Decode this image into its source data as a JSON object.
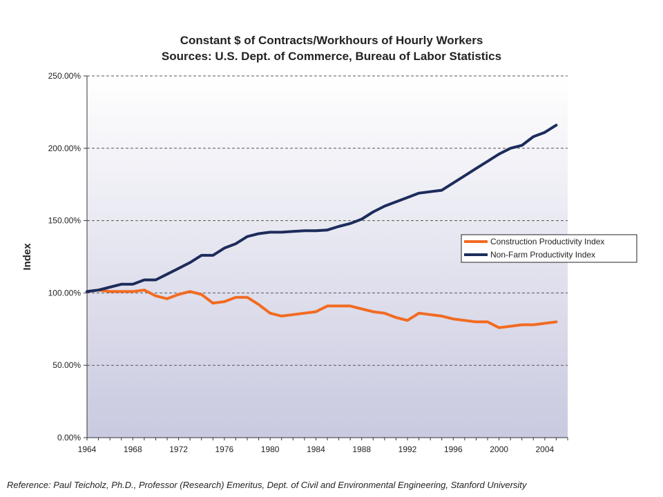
{
  "chart_data": {
    "type": "line",
    "title": "Constant $ of Contracts/Workhours of Hourly Workers",
    "subtitle": "Sources: U.S. Dept. of Commerce, Bureau of Labor Statistics",
    "xlabel": "",
    "ylabel": "Index",
    "ylim": [
      0,
      250
    ],
    "xlim": [
      1964,
      2006
    ],
    "grid": true,
    "legend_position": "right",
    "y_ticks": [
      0,
      50,
      100,
      150,
      200,
      250
    ],
    "y_tick_labels": [
      "0.00%",
      "50.00%",
      "100.00%",
      "150.00%",
      "200.00%",
      "250.00%"
    ],
    "x_ticks": [
      1964,
      1968,
      1972,
      1976,
      1980,
      1984,
      1988,
      1992,
      1996,
      2000,
      2004
    ],
    "x": [
      1964,
      1965,
      1966,
      1967,
      1968,
      1969,
      1970,
      1971,
      1972,
      1973,
      1974,
      1975,
      1976,
      1977,
      1978,
      1979,
      1980,
      1981,
      1982,
      1983,
      1984,
      1985,
      1986,
      1987,
      1988,
      1989,
      1990,
      1991,
      1992,
      1993,
      1994,
      1995,
      1996,
      1997,
      1998,
      1999,
      2000,
      2001,
      2002,
      2003,
      2004,
      2005
    ],
    "series": [
      {
        "name": "Construction Productivity Index",
        "color": "#f26b21",
        "values": [
          101,
          102,
          101,
          101,
          101,
          102,
          98,
          96,
          99,
          101,
          99,
          93,
          94,
          97,
          97,
          92,
          86,
          84,
          85,
          86,
          87,
          91,
          91,
          91,
          89,
          87,
          86,
          83,
          81,
          86,
          85,
          84,
          82,
          81,
          80,
          80,
          76,
          77,
          78,
          78,
          79,
          80
        ]
      },
      {
        "name": "Non-Farm Productivity Index",
        "color": "#1c2c5b",
        "values": [
          101,
          102,
          104,
          106,
          106,
          109,
          109,
          113,
          117,
          121,
          126,
          126,
          131,
          134,
          139,
          141,
          142,
          142,
          142.5,
          143,
          143,
          143.5,
          146,
          148,
          151,
          156,
          160,
          163,
          166,
          169,
          170,
          171,
          176,
          181,
          186,
          191,
          196,
          200,
          202,
          208,
          211,
          216
        ]
      }
    ]
  },
  "reference": "Reference: Paul Teicholz, Ph.D., Professor (Research) Emeritus, Dept. of Civil and Environmental Engineering, Stanford University"
}
